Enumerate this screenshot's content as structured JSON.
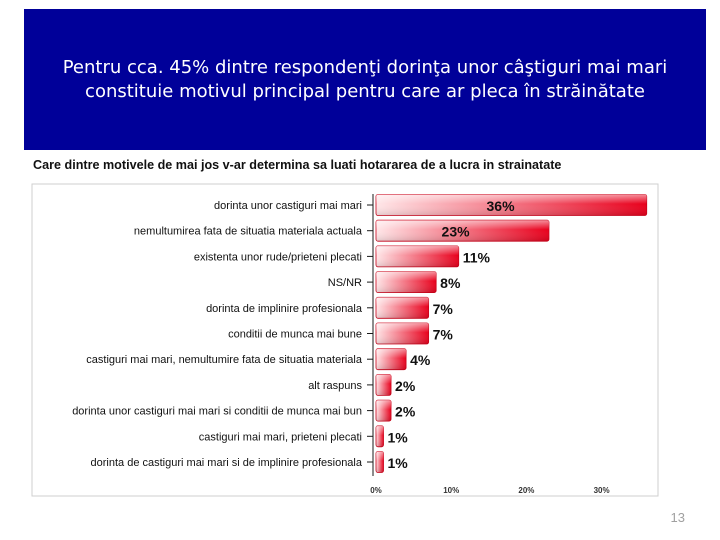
{
  "slide": {
    "title": "Pentru cca. 45% dintre respondenţi dorinţa unor câştiguri mai mari constituie motivul principal pentru care ar pleca în străinătate",
    "page_number": "13"
  },
  "chart_data": {
    "type": "bar",
    "orientation": "horizontal",
    "title": "Care dintre motivele de mai jos v-ar determina sa luati hotararea de a lucra in strainatate",
    "xlabel": "",
    "ylabel": "",
    "xlim": [
      0,
      37
    ],
    "x_ticks": [
      "0%",
      "10%",
      "20%",
      "30%"
    ],
    "grid": false,
    "legend": "none",
    "categories": [
      "dorinta unor castiguri mai mari",
      "nemultumirea fata de situatia materiala actuala",
      "existenta unor rude/prieteni plecati",
      "NS/NR",
      "dorinta de implinire profesionala",
      "conditii de munca mai bune",
      "castiguri mai mari, nemultumire fata de situatia materiala",
      "alt raspuns",
      "dorinta unor castiguri mai mari si conditii de munca mai bun",
      "castiguri mai mari, prieteni plecati",
      "dorinta de castiguri mai mari si de implinire profesionala"
    ],
    "values": [
      36,
      23,
      11,
      8,
      7,
      7,
      4,
      2,
      2,
      1,
      1
    ],
    "data_labels": [
      "36%",
      "23%",
      "11%",
      "8%",
      "7%",
      "7%",
      "4%",
      "2%",
      "2%",
      "1%",
      "1%"
    ],
    "colors": {
      "bar_dark": "#e8001c",
      "bar_light": "#ffe6e8",
      "border": "#cfcfcf",
      "axis": "#1a1a1a"
    }
  }
}
